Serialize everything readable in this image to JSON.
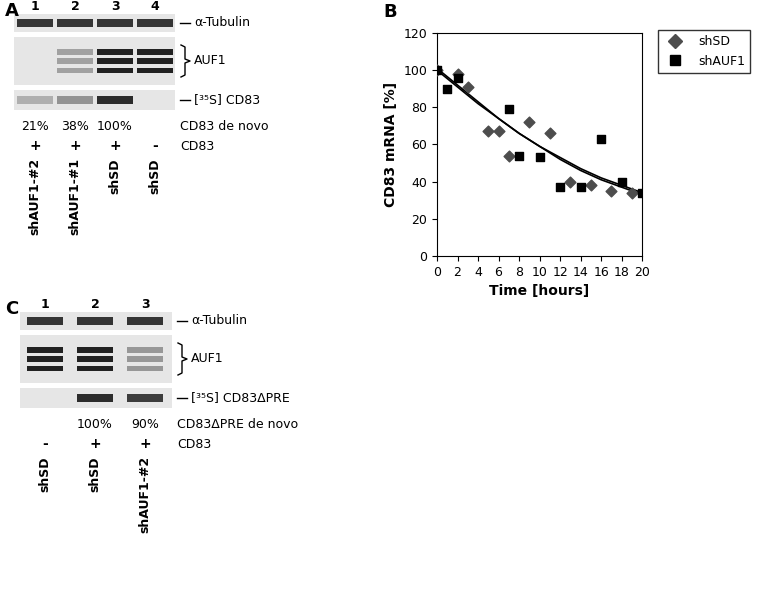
{
  "panels": {
    "A": {
      "label": "A",
      "lanes": [
        "1",
        "2",
        "3",
        "4"
      ],
      "rows": [
        "α-Tubulin",
        "AUF1",
        "[³⁵S] CD83"
      ],
      "de_novo": {
        "label": "CD83 de novo",
        "values": [
          21,
          38,
          100,
          null
        ],
        "value_labels": [
          "21%",
          "38%",
          "100%",
          null
        ]
      },
      "treatment": {
        "label": "CD83",
        "values": [
          "+",
          "+",
          "+",
          "-"
        ]
      },
      "lane_labels": [
        "shAUF1-#2",
        "shAUF1-#1",
        "shSD",
        "shSD"
      ]
    },
    "B": {
      "label": "B"
    },
    "C": {
      "label": "C",
      "lanes": [
        "1",
        "2",
        "3"
      ],
      "rows": [
        "α-Tubulin",
        "AUF1",
        "[³⁵S] CD83ΔPRE"
      ],
      "de_novo": {
        "label": "CD83ΔPRE de novo",
        "values": [
          null,
          100,
          90
        ],
        "value_labels": [
          null,
          "100%",
          "90%"
        ]
      },
      "treatment": {
        "label": "CD83",
        "values": [
          "-",
          "+",
          "+"
        ]
      },
      "lane_labels": [
        "shSD",
        "shSD",
        "shAUF1-#2"
      ]
    }
  },
  "chart_data": {
    "type": "scatter",
    "xlabel": "Time [hours]",
    "ylabel": "CD83 mRNA [%]",
    "xlim": [
      0,
      20
    ],
    "ylim": [
      0,
      120
    ],
    "xticks": [
      0,
      2,
      4,
      6,
      8,
      10,
      12,
      14,
      16,
      18,
      20
    ],
    "yticks": [
      0,
      20,
      40,
      60,
      80,
      100,
      120
    ],
    "legend": "upper right",
    "trend_x": [
      0,
      2,
      4,
      6,
      8,
      10,
      12,
      14,
      16,
      18,
      20
    ],
    "series": [
      {
        "name": "shSD",
        "color": "#4d4d4d",
        "marker": "diamond",
        "x": [
          0,
          2,
          3,
          5,
          6,
          7,
          9,
          11,
          13,
          15,
          17,
          19
        ],
        "values": [
          100,
          98,
          91,
          67,
          67,
          54,
          72,
          66,
          40,
          38,
          35,
          34
        ],
        "trend": [
          100,
          91,
          82,
          74,
          66,
          59,
          53,
          47,
          42,
          38,
          34
        ]
      },
      {
        "name": "shAUF1",
        "color": "#000000",
        "marker": "square",
        "x": [
          0,
          1,
          2,
          7,
          8,
          10,
          12,
          14,
          16,
          18,
          20
        ],
        "values": [
          100,
          90,
          96,
          79,
          54,
          53,
          37,
          37,
          63,
          40,
          34
        ],
        "trend": [
          101,
          92,
          83,
          74,
          66,
          59,
          52,
          46,
          41,
          37,
          33
        ]
      }
    ]
  }
}
